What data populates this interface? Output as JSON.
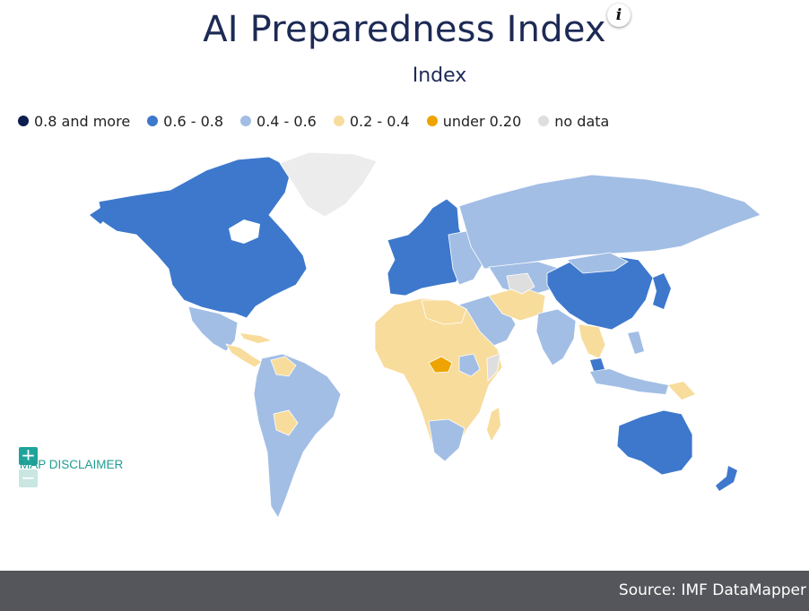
{
  "title": "AI Preparedness Index",
  "subtitle": "Index",
  "info_icon": "info-icon",
  "legend": [
    {
      "label": "0.8 and more",
      "color": "#0c1d4f"
    },
    {
      "label": "0.6 - 0.8",
      "color": "#3d78cc"
    },
    {
      "label": "0.4 - 0.6",
      "color": "#a2bee5"
    },
    {
      "label": "0.2 - 0.4",
      "color": "#f8dc9c"
    },
    {
      "label": "under 0.20",
      "color": "#eea400"
    },
    {
      "label": "no data",
      "color": "#dedede"
    }
  ],
  "controls": {
    "zoom_in": "+",
    "zoom_out": "−",
    "disclaimer": "MAP DISCLAIMER"
  },
  "footer": {
    "source": "Source: IMF DataMapper"
  }
}
